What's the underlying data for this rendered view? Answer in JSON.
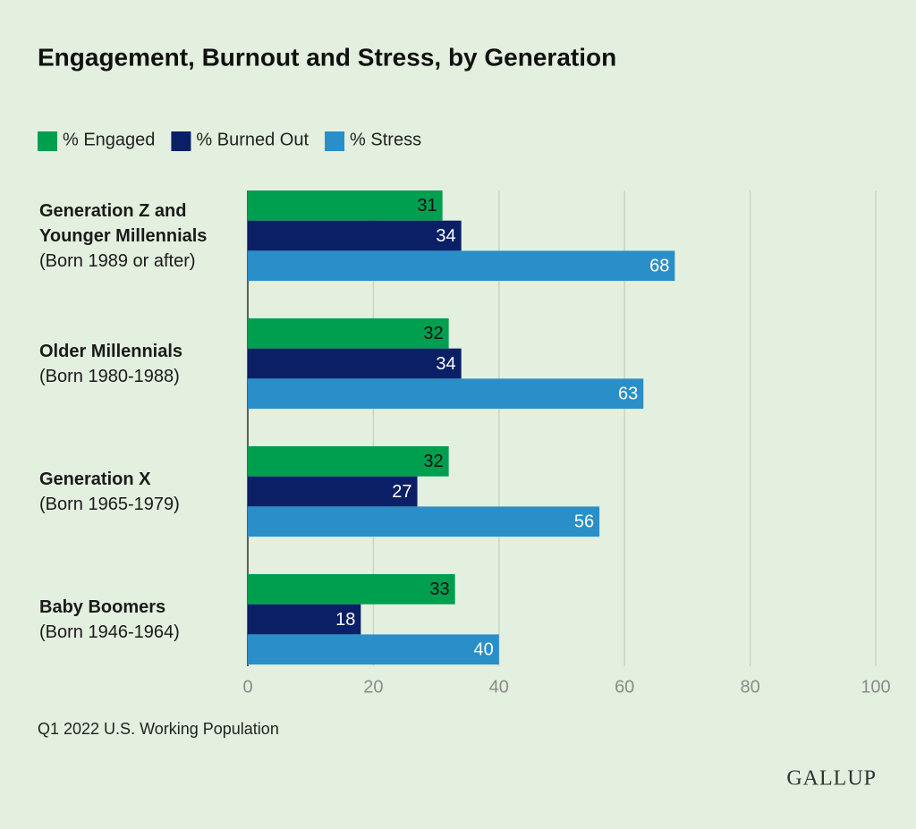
{
  "chart_data": {
    "type": "hbar",
    "title": "Engagement, Burnout and Stress, by Generation",
    "categories": [
      "Generation Z and Younger Millennials",
      "Older Millennials",
      "Generation X",
      "Baby Boomers"
    ],
    "category_notes": [
      "(Born 1989 or after)",
      "(Born 1980-1988)",
      "(Born 1965-1979)",
      "(Born 1946-1964)"
    ],
    "series": [
      {
        "name": "% Engaged",
        "color": "#009e4f",
        "label_color": "#111111",
        "values": [
          31,
          32,
          32,
          33
        ]
      },
      {
        "name": "% Burned Out",
        "color": "#0b1f66",
        "label_color": "#ffffff",
        "values": [
          34,
          34,
          27,
          18
        ]
      },
      {
        "name": "% Stress",
        "color": "#2a8fc8",
        "label_color": "#ffffff",
        "values": [
          68,
          63,
          56,
          40
        ]
      }
    ],
    "xlim": [
      0,
      100
    ],
    "xticks": [
      0,
      20,
      40,
      60,
      80,
      100
    ],
    "grid": true,
    "note": "Q1 2022 U.S. Working Population",
    "logo": "GALLUP"
  }
}
